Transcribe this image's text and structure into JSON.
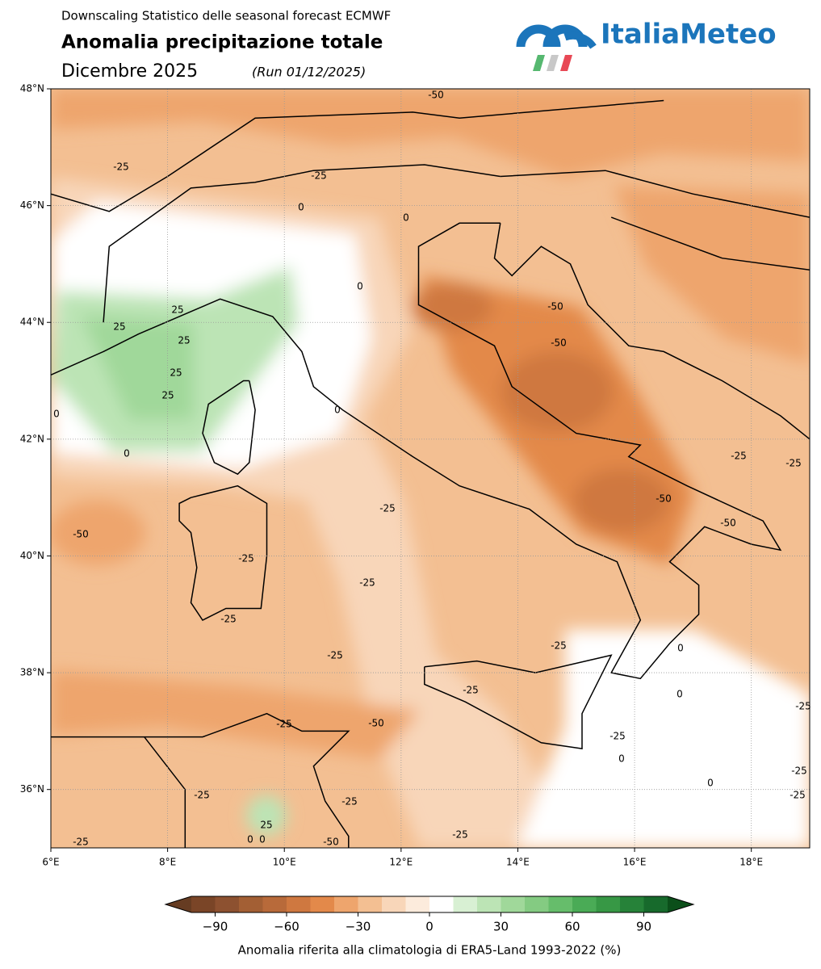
{
  "header": {
    "subtitle": "Downscaling Statistico delle seasonal forecast ECMWF",
    "title": "Anomalia precipitazione totale",
    "period": "Dicembre 2025",
    "run": "(Run 01/12/2025)"
  },
  "logo": {
    "text": "ItaliaMeteo"
  },
  "map": {
    "xlim": [
      6,
      19
    ],
    "ylim": [
      35,
      48
    ],
    "xticks": [
      {
        "value": 6,
        "label": "6°E"
      },
      {
        "value": 8,
        "label": "8°E"
      },
      {
        "value": 10,
        "label": "10°E"
      },
      {
        "value": 12,
        "label": "12°E"
      },
      {
        "value": 14,
        "label": "14°E"
      },
      {
        "value": 16,
        "label": "16°E"
      },
      {
        "value": 18,
        "label": "18°E"
      }
    ],
    "yticks": [
      {
        "value": 36,
        "label": "36°N"
      },
      {
        "value": 38,
        "label": "38°N"
      },
      {
        "value": 40,
        "label": "40°N"
      },
      {
        "value": 42,
        "label": "42°N"
      },
      {
        "value": 44,
        "label": "44°N"
      },
      {
        "value": 46,
        "label": "46°N"
      },
      {
        "value": 48,
        "label": "48°N"
      }
    ],
    "contour_labels": [
      "-50",
      "-25",
      "-25",
      "0",
      "0",
      "0",
      "25",
      "25",
      "25",
      "25",
      "25",
      "-50",
      "-50",
      "0",
      "0",
      "0",
      "-25",
      "-25",
      "-25",
      "-50",
      "-50",
      "-50",
      "-25",
      "-25",
      "-25",
      "-25",
      "-25",
      "0",
      "-25",
      "0",
      "-25",
      "-50",
      "-25",
      "-25",
      "0",
      "0",
      "-25",
      "-25",
      "-25",
      "-25",
      "25",
      "0",
      "0",
      "-50",
      "-25",
      "-25"
    ]
  },
  "colorbar": {
    "lim": [
      -100,
      100
    ],
    "ticks": [
      {
        "value": -90,
        "label": "−90"
      },
      {
        "value": -60,
        "label": "−60"
      },
      {
        "value": -30,
        "label": "−30"
      },
      0,
      30,
      60,
      90
    ],
    "colors": [
      "#7a4527",
      "#8d5130",
      "#a35f34",
      "#b86a3a",
      "#cf7840",
      "#e3894a",
      "#eea56d",
      "#f3bf92",
      "#f8d6b9",
      "#fcebdc",
      "#ffffff",
      "#d8f0d3",
      "#bce4b5",
      "#a0d89a",
      "#84cb82",
      "#66bd6b",
      "#4aab56",
      "#379845",
      "#268239",
      "#176a2c"
    ],
    "under": "#663c22",
    "over": "#0b4f1a",
    "label": "Anomalia riferita alla climatologia di ERA5-Land 1993-2022 (%)"
  }
}
